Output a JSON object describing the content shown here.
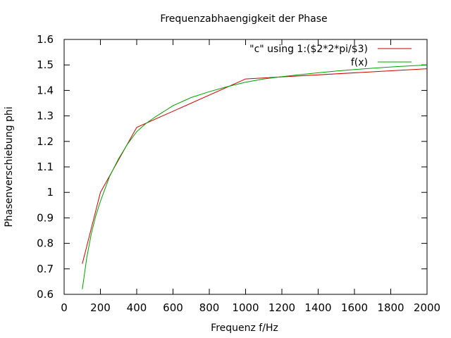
{
  "chart_data": {
    "type": "line",
    "title": "Frequenzabhaengigkeit der Phase",
    "xlabel": "Frequenz f/Hz",
    "ylabel": "Phasenverschiebung phi",
    "xlim": [
      0,
      2000
    ],
    "ylim": [
      0.6,
      1.6
    ],
    "xticks": [
      0,
      200,
      400,
      600,
      800,
      1000,
      1200,
      1400,
      1600,
      1800,
      2000
    ],
    "yticks": [
      0.6,
      0.7,
      0.8,
      0.9,
      1.0,
      1.1,
      1.2,
      1.3,
      1.4,
      1.5,
      1.6
    ],
    "xtick_labels": [
      "0",
      "200",
      "400",
      "600",
      "800",
      "1000",
      "1200",
      "1400",
      "1600",
      "1800",
      "2000"
    ],
    "ytick_labels": [
      "0.6",
      "0.7",
      "0.8",
      "0.9",
      "1",
      "1.1",
      "1.2",
      "1.3",
      "1.4",
      "1.5",
      "1.6"
    ],
    "grid": false,
    "legend_position": "top-right",
    "series": [
      {
        "name": "\"c\" using 1:($2*2*pi/$3)",
        "color": "#cc0000",
        "x": [
          100,
          200,
          400,
          1000,
          2000
        ],
        "y": [
          0.72,
          1.0,
          1.255,
          1.445,
          1.485
        ]
      },
      {
        "name": "f(x)",
        "color": "#00a000",
        "x": [
          100,
          125,
          150,
          175,
          200,
          250,
          300,
          350,
          400,
          450,
          500,
          600,
          700,
          800,
          900,
          1000,
          1100,
          1200,
          1300,
          1400,
          1500,
          1600,
          1700,
          1800,
          1900,
          2000
        ],
        "y": [
          0.62,
          0.745,
          0.838,
          0.91,
          0.965,
          1.062,
          1.132,
          1.19,
          1.238,
          1.27,
          1.295,
          1.34,
          1.372,
          1.395,
          1.415,
          1.432,
          1.445,
          1.454,
          1.462,
          1.469,
          1.476,
          1.482,
          1.487,
          1.492,
          1.496,
          1.5
        ]
      }
    ]
  }
}
